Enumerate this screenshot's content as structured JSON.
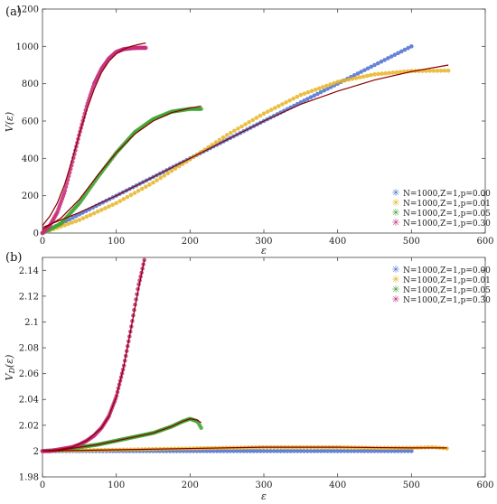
{
  "chart_data": [
    {
      "type": "scatter",
      "panel_label": "(a)",
      "xlabel": "ε",
      "ylabel": "V(ε)",
      "xlim": [
        0,
        600
      ],
      "ylim": [
        0,
        1200
      ],
      "xticks": [
        "0",
        "100",
        "200",
        "300",
        "400",
        "500",
        "600"
      ],
      "yticks": [
        "0",
        "200",
        "400",
        "600",
        "800",
        "1000",
        "1200"
      ],
      "legend_position": "bottom-right",
      "legend": [
        "N=1000,Z=1,p=0.00",
        "N=1000,Z=1,p=0.01",
        "N=1000,Z=1,p=0.05",
        "N=1000,Z=1,p=0.30"
      ],
      "series": [
        {
          "name": "N=1000,Z=1,p=0.00",
          "color": "#4a6fd1",
          "x": [
            0,
            100,
            200,
            300,
            400,
            500
          ],
          "y": [
            0,
            200,
            400,
            600,
            800,
            1000
          ]
        },
        {
          "name": "N=1000,Z=1,p=0.01",
          "color": "#e6b422",
          "x": [
            0,
            50,
            100,
            150,
            200,
            250,
            300,
            350,
            400,
            450,
            500,
            550
          ],
          "y": [
            0,
            70,
            160,
            270,
            395,
            525,
            640,
            740,
            810,
            850,
            868,
            870
          ]
        },
        {
          "name": "N=1000,Z=1,p=0.05",
          "color": "#3fa535",
          "x": [
            0,
            25,
            50,
            75,
            100,
            125,
            150,
            175,
            200,
            215
          ],
          "y": [
            0,
            50,
            160,
            300,
            430,
            540,
            610,
            650,
            665,
            665
          ]
        },
        {
          "name": "N=1000,Z=1,p=0.30",
          "color": "#c72e7e",
          "x": [
            0,
            10,
            20,
            30,
            40,
            50,
            60,
            70,
            80,
            90,
            100,
            110,
            120,
            130,
            140
          ],
          "y": [
            0,
            40,
            110,
            220,
            370,
            530,
            680,
            800,
            880,
            935,
            970,
            985,
            990,
            992,
            992
          ]
        }
      ],
      "fits": [
        {
          "name": "fit p=0.01",
          "color": "#8b0000",
          "x": [
            0,
            50,
            100,
            150,
            200,
            250,
            300,
            350,
            400,
            450,
            500,
            550
          ],
          "y": [
            30,
            110,
            200,
            300,
            400,
            500,
            600,
            690,
            760,
            820,
            865,
            900
          ]
        },
        {
          "name": "fit p=0.05",
          "color": "#8b0000",
          "x": [
            0,
            25,
            50,
            75,
            100,
            125,
            150,
            175,
            200,
            215
          ],
          "y": [
            20,
            80,
            180,
            310,
            430,
            530,
            600,
            645,
            670,
            680
          ]
        },
        {
          "name": "fit p=0.30",
          "color": "#8b0000",
          "x": [
            0,
            10,
            20,
            30,
            40,
            50,
            60,
            70,
            80,
            90,
            100,
            110,
            120,
            130,
            140
          ],
          "y": [
            40,
            90,
            160,
            260,
            390,
            530,
            660,
            770,
            860,
            920,
            960,
            985,
            1000,
            1010,
            1018
          ]
        }
      ]
    },
    {
      "type": "scatter",
      "panel_label": "(b)",
      "xlabel": "ε",
      "ylabel": "V_D(ε)",
      "xlim": [
        0,
        600
      ],
      "ylim": [
        1.98,
        2.15
      ],
      "xticks": [
        "0",
        "100",
        "200",
        "300",
        "400",
        "500",
        "600"
      ],
      "yticks": [
        "1.98",
        "2",
        "2.02",
        "2.04",
        "2.06",
        "2.08",
        "2.1",
        "2.12",
        "2.14"
      ],
      "legend_position": "top-right",
      "legend": [
        "N=1000,Z=1,p=0.00",
        "N=1000,Z=1,p=0.01",
        "N=1000,Z=1,p=0.05",
        "N=1000,Z=1,p=0.30"
      ],
      "series": [
        {
          "name": "N=1000,Z=1,p=0.00",
          "color": "#4a6fd1",
          "x": [
            0,
            100,
            200,
            300,
            400,
            500
          ],
          "y": [
            2.0,
            2.0,
            2.0,
            2.0,
            2.0,
            2.0
          ]
        },
        {
          "name": "N=1000,Z=1,p=0.01",
          "color": "#e6b422",
          "x": [
            0,
            50,
            100,
            150,
            200,
            250,
            300,
            350,
            400,
            450,
            500,
            530,
            548
          ],
          "y": [
            2.0,
            2.0005,
            2.001,
            2.0015,
            2.002,
            2.0025,
            2.003,
            2.003,
            2.003,
            2.0025,
            2.0025,
            2.003,
            2.002
          ]
        },
        {
          "name": "N=1000,Z=1,p=0.05",
          "color": "#3fa535",
          "x": [
            0,
            25,
            50,
            75,
            100,
            125,
            150,
            175,
            190,
            200,
            210,
            215
          ],
          "y": [
            2.0,
            2.001,
            2.003,
            2.005,
            2.008,
            2.011,
            2.014,
            2.019,
            2.023,
            2.025,
            2.023,
            2.018
          ]
        },
        {
          "name": "N=1000,Z=1,p=0.30",
          "color": "#c72e7e",
          "x": [
            0,
            10,
            20,
            30,
            40,
            50,
            60,
            70,
            80,
            90,
            100,
            110,
            120,
            125,
            130,
            135,
            138
          ],
          "y": [
            2.0,
            2.0,
            2.001,
            2.002,
            2.003,
            2.005,
            2.008,
            2.012,
            2.018,
            2.027,
            2.042,
            2.065,
            2.095,
            2.112,
            2.128,
            2.14,
            2.148
          ]
        }
      ],
      "fits": [
        {
          "name": "fit p=0.01",
          "color": "#8b0000",
          "x": [
            0,
            100,
            200,
            300,
            400,
            500,
            548
          ],
          "y": [
            2.0,
            2.001,
            2.002,
            2.003,
            2.003,
            2.0025,
            2.0025
          ]
        },
        {
          "name": "fit p=0.05",
          "color": "#8b0000",
          "x": [
            0,
            25,
            50,
            75,
            100,
            125,
            150,
            175,
            190,
            200,
            210,
            215
          ],
          "y": [
            2.0,
            2.001,
            2.003,
            2.005,
            2.008,
            2.011,
            2.014,
            2.019,
            2.023,
            2.025,
            2.024,
            2.022
          ]
        },
        {
          "name": "fit p=0.30",
          "color": "#8b0000",
          "x": [
            0,
            20,
            40,
            60,
            80,
            90,
            100,
            110,
            120,
            130,
            138
          ],
          "y": [
            2.0,
            2.001,
            2.003,
            2.008,
            2.018,
            2.027,
            2.042,
            2.065,
            2.095,
            2.125,
            2.148
          ]
        }
      ]
    }
  ]
}
